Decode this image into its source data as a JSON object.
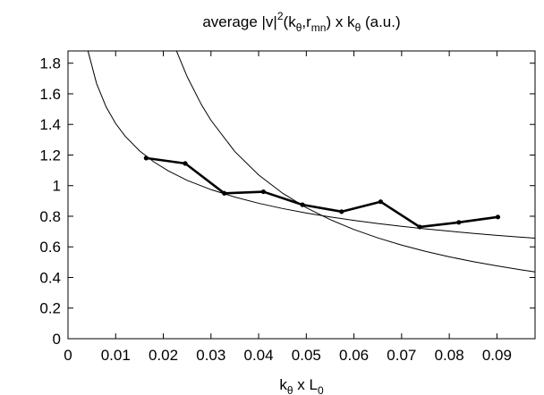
{
  "chart_data": {
    "type": "line",
    "title": {
      "parts": [
        {
          "t": "average |v|",
          "s": "n"
        },
        {
          "t": "2",
          "s": "sup"
        },
        {
          "t": "(k",
          "s": "n"
        },
        {
          "t": "θ",
          "s": "sub"
        },
        {
          "t": ",r",
          "s": "n"
        },
        {
          "t": "mn",
          "s": "sub"
        },
        {
          "t": ") x k",
          "s": "n"
        },
        {
          "t": "θ",
          "s": "sub"
        },
        {
          "t": " (a.u.)",
          "s": "n"
        }
      ]
    },
    "xlabel": {
      "parts": [
        {
          "t": "k",
          "s": "n"
        },
        {
          "t": "θ",
          "s": "sub"
        },
        {
          "t": " x L",
          "s": "n"
        },
        {
          "t": "0",
          "s": "sub"
        }
      ]
    },
    "ylabel": "",
    "xlim": [
      0,
      0.098
    ],
    "ylim": [
      0,
      1.88
    ],
    "xticks": [
      0,
      0.01,
      0.02,
      0.03,
      0.04,
      0.05,
      0.06,
      0.07,
      0.08,
      0.09
    ],
    "xtick_labels": [
      "0",
      "0.01",
      "0.02",
      "0.03",
      "0.04",
      "0.05",
      "0.06",
      "0.07",
      "0.08",
      "0.09"
    ],
    "yticks": [
      0,
      0.2,
      0.4,
      0.6,
      0.8,
      1,
      1.2,
      1.4,
      1.6,
      1.8
    ],
    "ytick_labels": [
      "0",
      "0.2",
      "0.4",
      "0.6",
      "0.8",
      "1",
      "1.2",
      "1.4",
      "1.6",
      "1.8"
    ],
    "grid": false,
    "series": [
      {
        "style": "thick-line-with-markers",
        "x": [
          0.0164,
          0.0246,
          0.0328,
          0.041,
          0.0492,
          0.0574,
          0.0656,
          0.0738,
          0.082,
          0.0902
        ],
        "y": [
          1.18,
          1.145,
          0.95,
          0.96,
          0.875,
          0.83,
          0.895,
          0.73,
          0.76,
          0.795
        ]
      }
    ],
    "fit_curves": [
      {
        "style": "thin-line",
        "formula": "0.4332 * x^(-0.3333)",
        "x": [
          0.0042,
          0.006,
          0.008,
          0.01,
          0.012,
          0.015,
          0.018,
          0.021,
          0.025,
          0.03,
          0.035,
          0.04,
          0.045,
          0.05,
          0.055,
          0.06,
          0.065,
          0.07,
          0.075,
          0.08,
          0.085,
          0.09,
          0.095,
          0.098
        ],
        "y": [
          1.8789,
          1.6666,
          1.5142,
          1.4055,
          1.3226,
          1.2277,
          1.1553,
          1.0975,
          1.0344,
          0.9741,
          0.9253,
          0.8848,
          0.8506,
          0.8212,
          0.7955,
          0.7728,
          0.7525,
          0.7343,
          0.7176,
          0.7025,
          0.6884,
          0.6754,
          0.6632,
          0.6565
        ]
      },
      {
        "style": "thin-line",
        "formula": "0.0428 / x",
        "x": [
          0.0228,
          0.025,
          0.028,
          0.03,
          0.035,
          0.04,
          0.045,
          0.05,
          0.055,
          0.06,
          0.065,
          0.07,
          0.075,
          0.08,
          0.085,
          0.09,
          0.095,
          0.098
        ],
        "y": [
          1.8772,
          1.712,
          1.5286,
          1.4267,
          1.2229,
          1.07,
          0.9511,
          0.856,
          0.7782,
          0.7133,
          0.6585,
          0.6114,
          0.5707,
          0.535,
          0.5035,
          0.4756,
          0.4505,
          0.4367
        ]
      }
    ]
  }
}
